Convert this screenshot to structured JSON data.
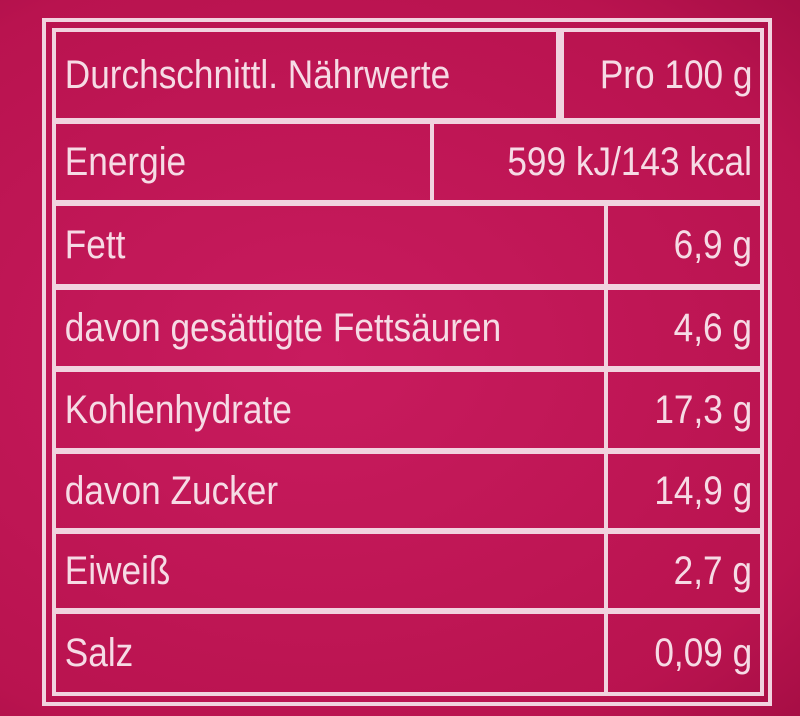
{
  "header": {
    "label": "Durchschnittl. Nährwerte",
    "value": "Pro 100 g"
  },
  "rows": [
    {
      "label": "Energie",
      "value": "599 kJ/143 kcal"
    },
    {
      "label": "Fett",
      "value": "6,9 g"
    },
    {
      "label": "davon gesättigte Fettsäuren",
      "value": "4,6 g"
    },
    {
      "label": "Kohlenhydrate",
      "value": "17,3 g"
    },
    {
      "label": "davon Zucker",
      "value": "14,9 g"
    },
    {
      "label": "Eiweiß",
      "value": "2,7 g"
    },
    {
      "label": "Salz",
      "value": "0,09 g"
    }
  ],
  "colors": {
    "background": "#c3175a",
    "lines": "#f1d3df"
  }
}
